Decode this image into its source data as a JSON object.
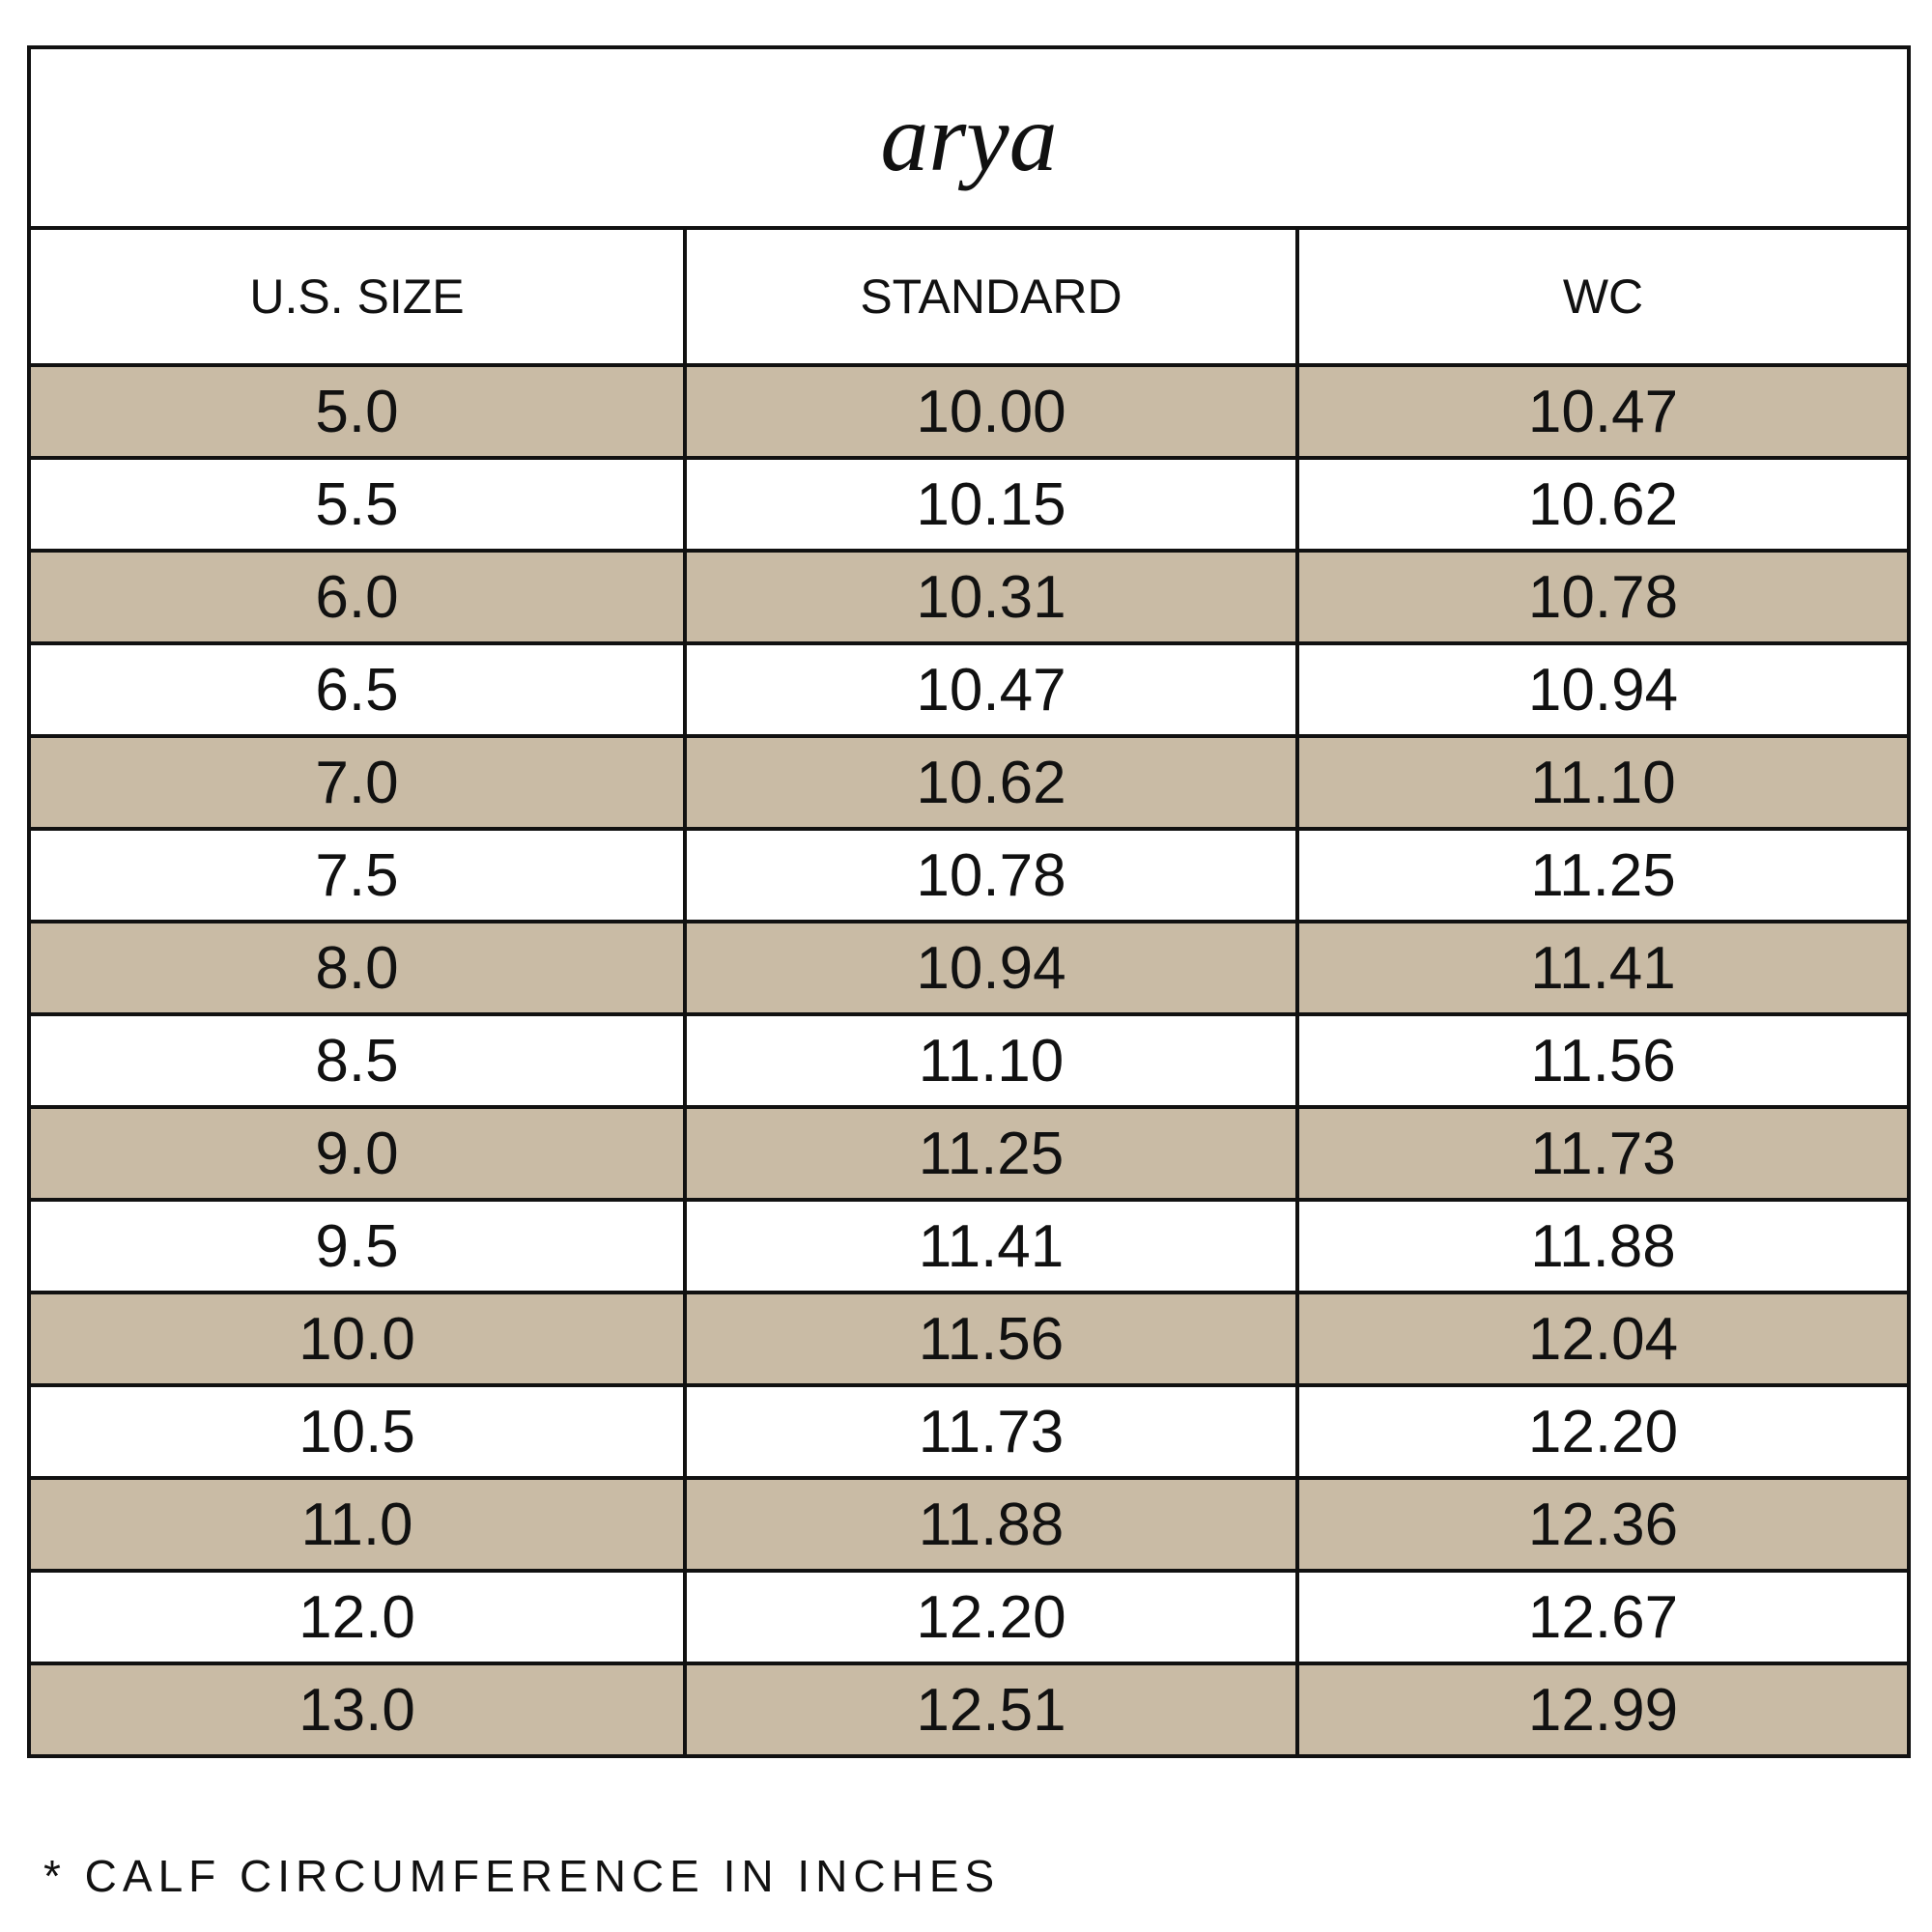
{
  "title": "arya",
  "table": {
    "header": [
      "U.S. SIZE",
      "STANDARD",
      "WC"
    ],
    "rows": [
      [
        "5.0",
        "10.00",
        "10.47"
      ],
      [
        "5.5",
        "10.15",
        "10.62"
      ],
      [
        "6.0",
        "10.31",
        "10.78"
      ],
      [
        "6.5",
        "10.47",
        "10.94"
      ],
      [
        "7.0",
        "10.62",
        "11.10"
      ],
      [
        "7.5",
        "10.78",
        "11.25"
      ],
      [
        "8.0",
        "10.94",
        "11.41"
      ],
      [
        "8.5",
        "11.10",
        "11.56"
      ],
      [
        "9.0",
        "11.25",
        "11.73"
      ],
      [
        "9.5",
        "11.41",
        "11.88"
      ],
      [
        "10.0",
        "11.56",
        "12.04"
      ],
      [
        "10.5",
        "11.73",
        "12.20"
      ],
      [
        "11.0",
        "11.88",
        "12.36"
      ],
      [
        "12.0",
        "12.20",
        "12.67"
      ],
      [
        "13.0",
        "12.51",
        "12.99"
      ]
    ]
  },
  "footnote": "* CALF CIRCUMFERENCE IN INCHES"
}
